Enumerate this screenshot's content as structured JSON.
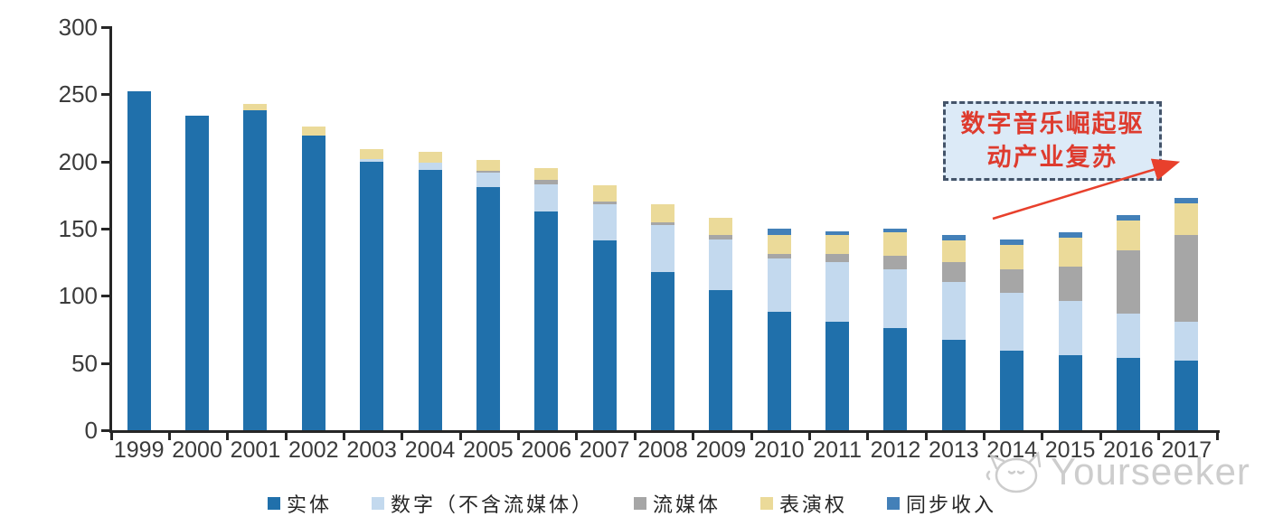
{
  "chart_data": {
    "type": "bar",
    "stacked": true,
    "title": "",
    "xlabel": "",
    "ylabel": "",
    "ylim": [
      0,
      300
    ],
    "yticks": [
      0,
      50,
      100,
      150,
      200,
      250,
      300
    ],
    "grid": false,
    "legend_position": "bottom",
    "categories": [
      "1999",
      "2000",
      "2001",
      "2002",
      "2003",
      "2004",
      "2005",
      "2006",
      "2007",
      "2008",
      "2009",
      "2010",
      "2011",
      "2012",
      "2013",
      "2014",
      "2015",
      "2016",
      "2017"
    ],
    "series": [
      {
        "name": "实体",
        "color": "#2070ab",
        "values": [
          252,
          234,
          238,
          219,
          200,
          194,
          181,
          163,
          141,
          118,
          104,
          88,
          81,
          76,
          67,
          59,
          56,
          54,
          52
        ]
      },
      {
        "name": "数字（不含流媒体）",
        "color": "#c3d9ee",
        "values": [
          0,
          0,
          0,
          0,
          2,
          5,
          11,
          20,
          27,
          35,
          38,
          40,
          44,
          44,
          43,
          43,
          40,
          33,
          29
        ]
      },
      {
        "name": "流媒体",
        "color": "#a6a6a6",
        "values": [
          0,
          0,
          0,
          0,
          0,
          0,
          1,
          3,
          2,
          2,
          3,
          3,
          6,
          10,
          15,
          18,
          26,
          47,
          64
        ]
      },
      {
        "name": "表演权",
        "color": "#ebda99",
        "values": [
          0,
          0,
          5,
          7,
          7,
          8,
          8,
          9,
          12,
          13,
          13,
          14,
          14,
          17,
          16,
          18,
          21,
          22,
          24
        ]
      },
      {
        "name": "同步收入",
        "color": "#4380b8",
        "values": [
          0,
          0,
          0,
          0,
          0,
          0,
          0,
          0,
          0,
          0,
          0,
          5,
          3,
          3,
          4,
          4,
          4,
          4,
          4
        ]
      }
    ]
  },
  "annotation": {
    "line1": "数字音乐崛起驱",
    "line2": "动产业复苏",
    "text_color": "#de3b2e",
    "arrow_color": "#e8402c"
  },
  "watermark": {
    "text": "Yourseeker"
  }
}
